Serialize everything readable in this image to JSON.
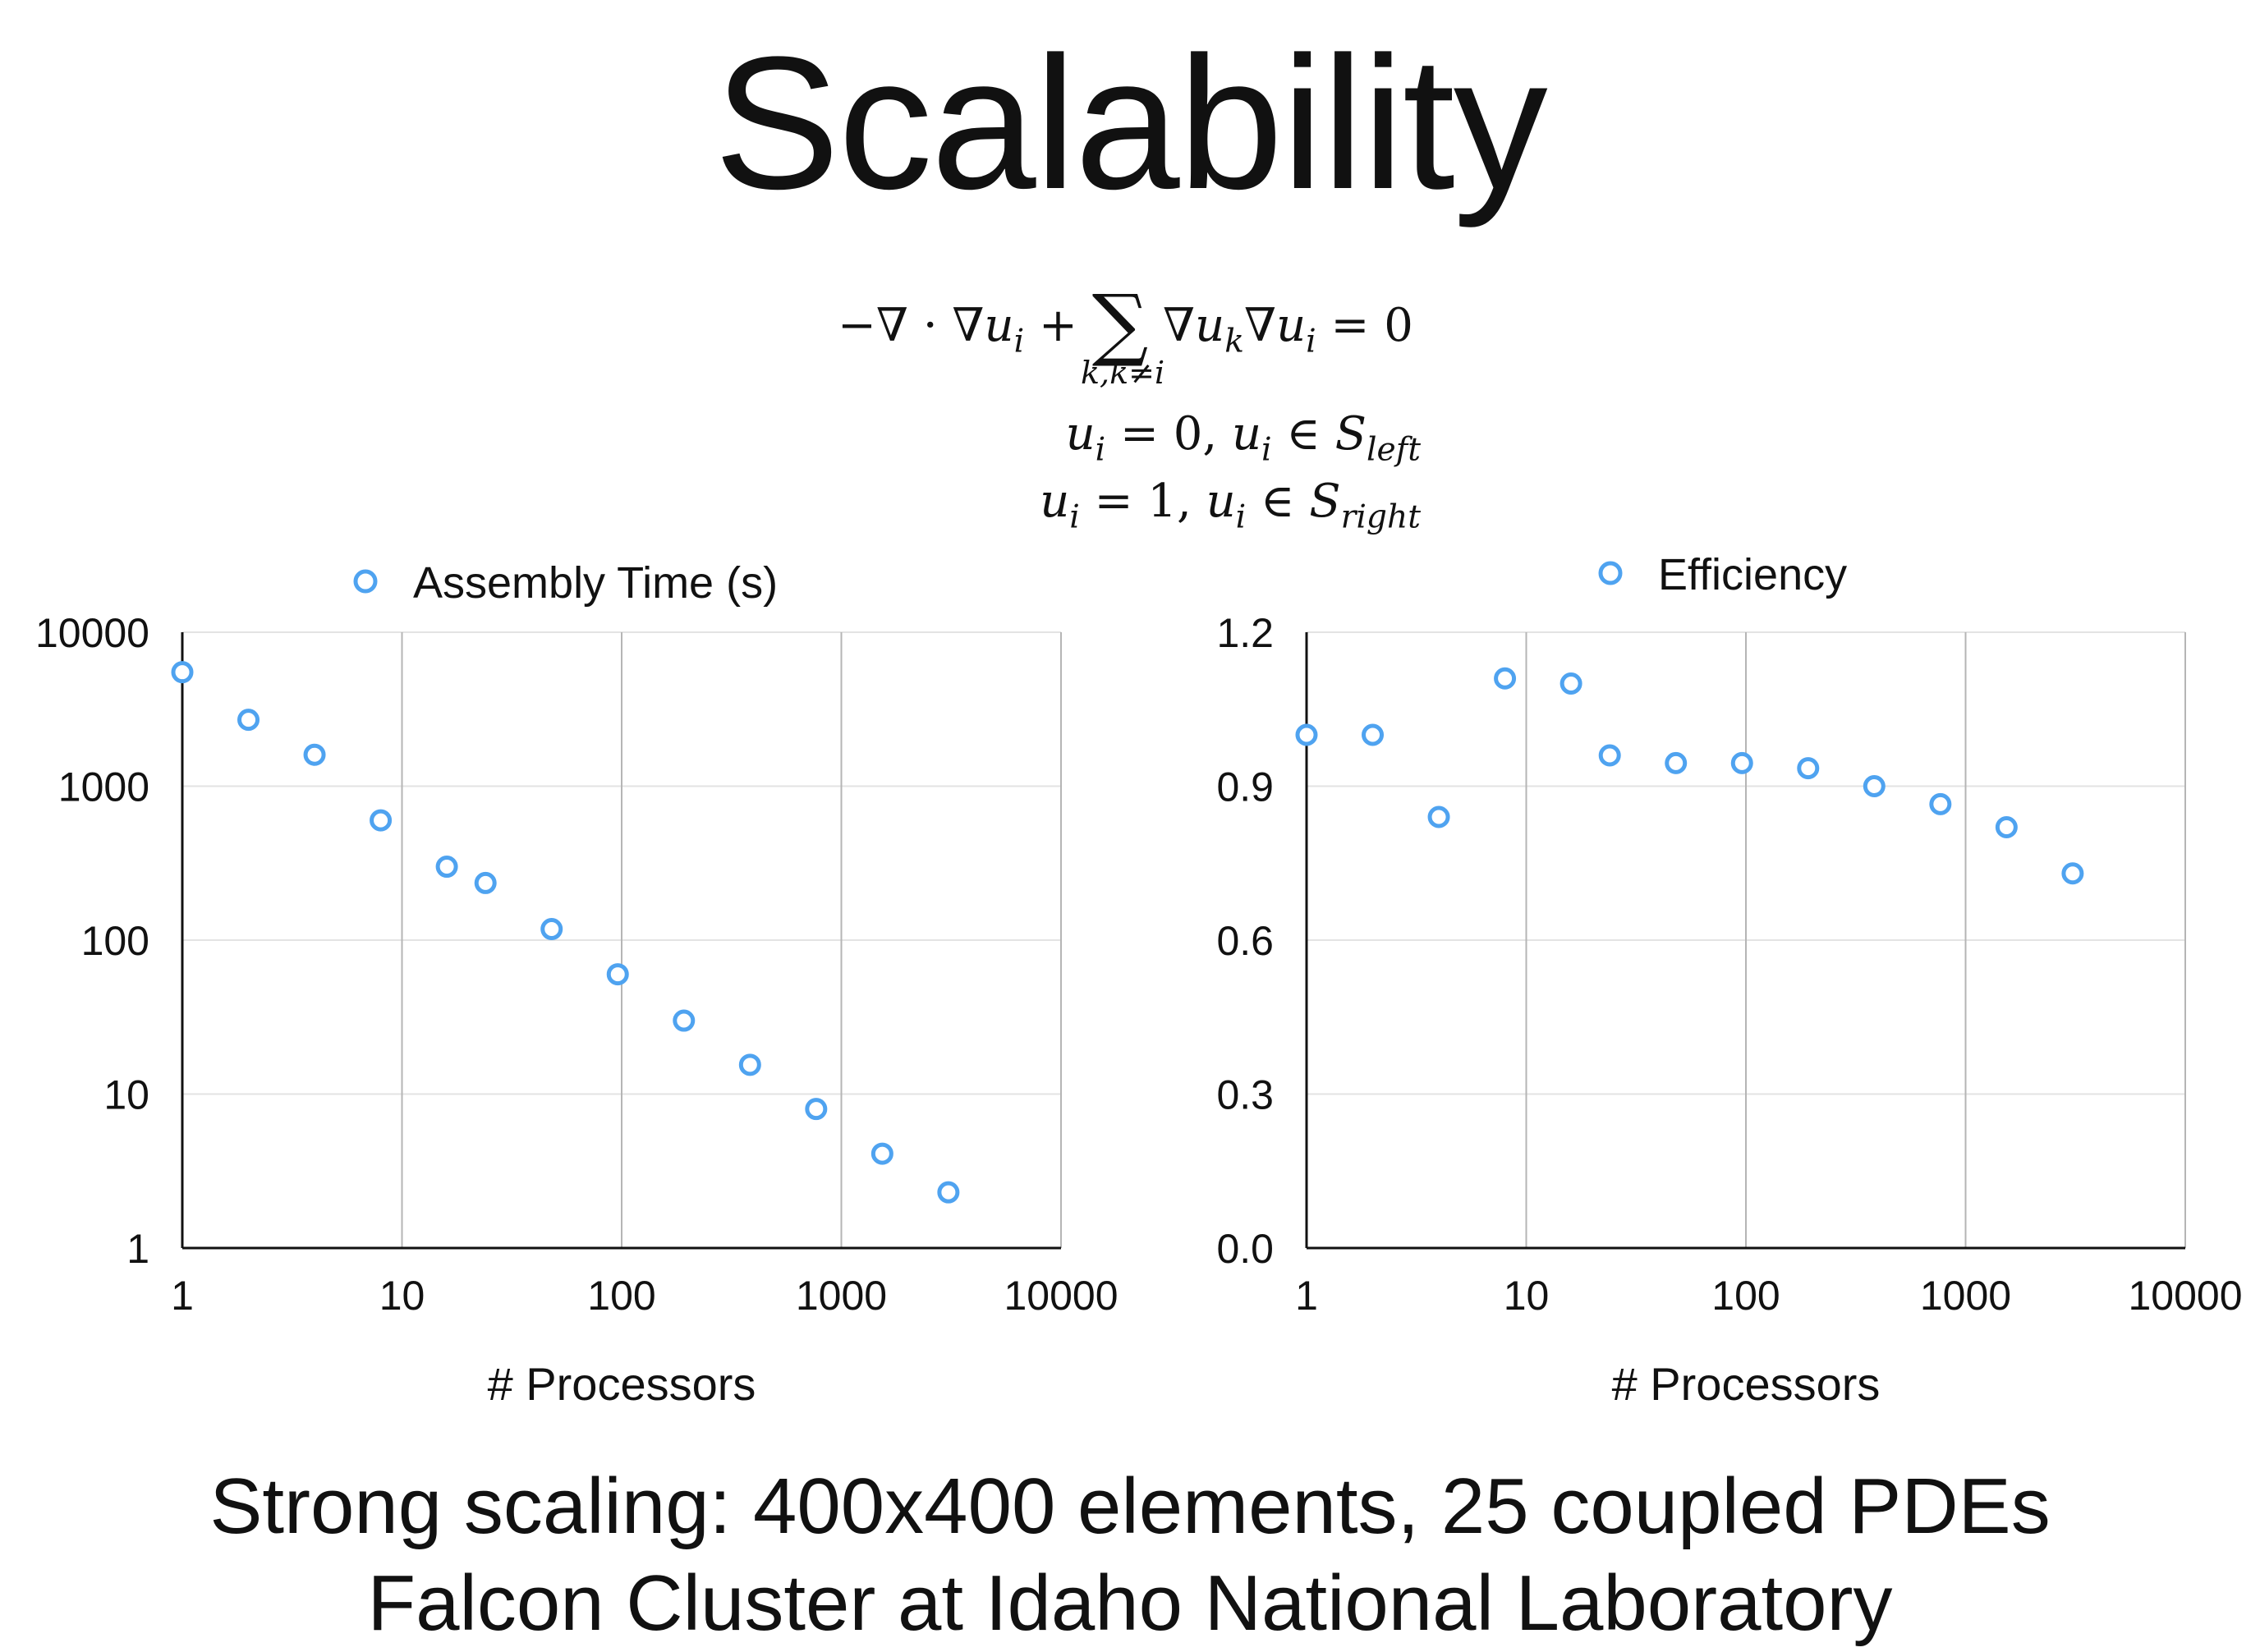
{
  "slide": {
    "title": "Scalability",
    "caption_line1": "Strong scaling: 400x400 elements, 25 coupled PDEs",
    "caption_line2": "Falcon Cluster at Idaho National Laboratory"
  },
  "equations": {
    "sum_subscript": "k,k≠i"
  },
  "colors": {
    "marker": "#4fa3f0",
    "grid": "#e3e3e3",
    "vgrid": "#b5b5b5",
    "axis": "#111111"
  },
  "chart_data": [
    {
      "type": "scatter",
      "series": [
        {
          "name": "Assembly Time (s)",
          "x": [
            1,
            2,
            4,
            8,
            16,
            24,
            48,
            96,
            192,
            384,
            768,
            1536,
            3072
          ],
          "y": [
            5500,
            2700,
            1600,
            600,
            300,
            235,
            118,
            60,
            30,
            15.5,
            8,
            4.1,
            2.3
          ]
        }
      ],
      "xlabel": "# Processors",
      "ylabel": "",
      "xscale": "log",
      "yscale": "log",
      "xlim": [
        1,
        10000
      ],
      "ylim": [
        1,
        10000
      ],
      "xticks": [
        "1",
        "10",
        "100",
        "1000",
        "10000"
      ],
      "yticks": [
        "1",
        "10",
        "100",
        "1000",
        "10000"
      ],
      "grid": "horizontal-light, vertical-dark",
      "legend": "top-center"
    },
    {
      "type": "scatter",
      "series": [
        {
          "name": "Efficiency",
          "x": [
            1,
            2,
            4,
            8,
            16,
            24,
            48,
            96,
            192,
            384,
            768,
            1536,
            3072
          ],
          "y": [
            1.0,
            1.0,
            0.84,
            1.11,
            1.1,
            0.96,
            0.945,
            0.945,
            0.935,
            0.9,
            0.865,
            0.82,
            0.73
          ]
        }
      ],
      "xlabel": "# Processors",
      "ylabel": "",
      "xscale": "log",
      "yscale": "linear",
      "xlim": [
        1,
        10000
      ],
      "ylim": [
        0.0,
        1.2
      ],
      "xticks": [
        "1",
        "10",
        "100",
        "1000",
        "10000"
      ],
      "yticks": [
        "0.0",
        "0.3",
        "0.6",
        "0.9",
        "1.2"
      ],
      "grid": "horizontal-light, vertical-dark",
      "legend": "top-center"
    }
  ]
}
